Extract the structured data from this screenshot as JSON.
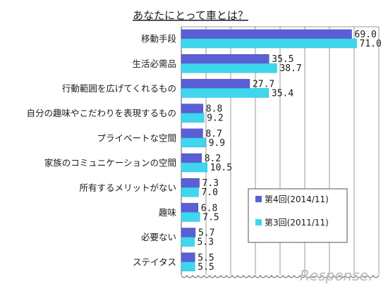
{
  "chart_data": {
    "type": "bar",
    "orientation": "horizontal",
    "title": "あなたにとって車とは？",
    "categories": [
      "移動手段",
      "生活必需品",
      "行動範囲を広げてくれるもの",
      "自分の趣味やこだわりを表現するもの",
      "プライベートな空間",
      "家族のコミュニケーションの空間",
      "所有するメリットがない",
      "趣味",
      "必要ない",
      "ステイタス"
    ],
    "series": [
      {
        "name": "第4回(2014/11)",
        "color": "#5b5fd6",
        "values": [
          69.0,
          35.5,
          27.7,
          8.8,
          8.7,
          8.2,
          7.3,
          6.8,
          5.7,
          5.5
        ]
      },
      {
        "name": "第3回(2011/11)",
        "color": "#3fd6ee",
        "values": [
          71.0,
          38.7,
          35.4,
          9.2,
          9.9,
          10.5,
          7.0,
          7.5,
          5.3,
          5.5
        ]
      }
    ],
    "xlim": [
      0,
      80
    ],
    "grid": true,
    "legend_position": "bottom-right",
    "axis_break": true
  },
  "watermark": "Response."
}
